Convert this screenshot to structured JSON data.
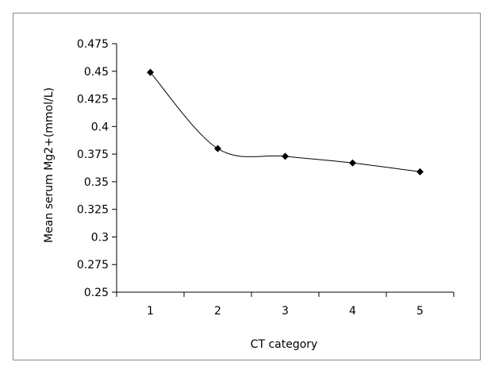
{
  "chart_data": {
    "type": "line",
    "x": [
      1,
      2,
      3,
      4,
      5
    ],
    "series": [
      {
        "values": [
          0.449,
          0.38,
          0.373,
          0.367,
          0.359
        ]
      }
    ],
    "xlabel": "CT category",
    "ylabel": "Mean serum Mg2+(mmol/L)",
    "ylim": [
      0.25,
      0.475
    ],
    "yticks": [
      "0.25",
      "0.275",
      "0.3",
      "0.325",
      "0.35",
      "0.375",
      "0.4",
      "0.425",
      "0.45",
      "0.475"
    ],
    "xticks": [
      "1",
      "2",
      "3",
      "4",
      "5"
    ],
    "smoothed": true,
    "grid": false,
    "legend": "none",
    "marker": "diamond",
    "line_color": "#000000"
  }
}
